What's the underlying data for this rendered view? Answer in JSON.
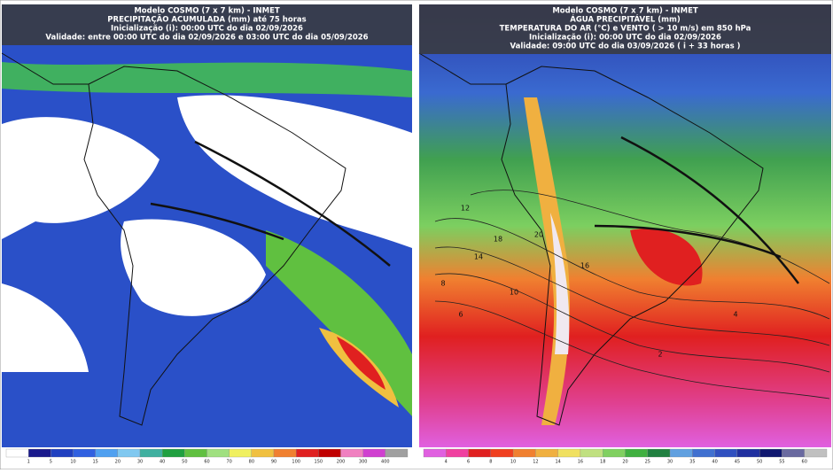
{
  "panels": [
    {
      "header": [
        "Modelo COSMO (7 x 7 km) - INMET",
        "PRECIPITAÇÃO ACUMULADA (mm) até 75 horas",
        "Inicialização (i): 00:00 UTC do dia 02/09/2026",
        "Validade: entre 00:00 UTC do dia 02/09/2026 e 03:00 UTC do dia 05/09/2026"
      ],
      "colorbar": {
        "colors": [
          "#ffffff",
          "#1a1a8c",
          "#2040c0",
          "#3060e0",
          "#4fa0f0",
          "#80c8f0",
          "#40b0a0",
          "#20a040",
          "#60c040",
          "#a0e080",
          "#f0f060",
          "#f0c040",
          "#f08030",
          "#e02020",
          "#c00000",
          "#f080c0",
          "#d040d0",
          "#a0a0a0"
        ],
        "labels": [
          "1",
          "5",
          "10",
          "15",
          "20",
          "30",
          "40",
          "50",
          "60",
          "70",
          "80",
          "90",
          "100",
          "150",
          "200",
          "300",
          "400"
        ]
      }
    },
    {
      "header": [
        "Modelo COSMO (7 x 7 km) - INMET",
        "ÁGUA PRECIPITÁVEL (mm)",
        "TEMPERATURA DO AR (°C) e VENTO ( > 10 m/s) em 850 hPa",
        "Inicialização (i): 00:00 UTC do dia 02/09/2026",
        "Validade: 09:00 UTC do dia 03/09/2026 ( i + 33 horas )"
      ],
      "colorbar": {
        "colors": [
          "#e060e0",
          "#f040a0",
          "#e02020",
          "#f04020",
          "#f08030",
          "#f0b040",
          "#f0e060",
          "#c0e080",
          "#80d060",
          "#40b040",
          "#208040",
          "#60a0e0",
          "#4070d0",
          "#3050c0",
          "#2030a0",
          "#101870",
          "#6a6aa0",
          "#c0c0c0"
        ],
        "labels": [
          "4",
          "6",
          "8",
          "10",
          "12",
          "14",
          "16",
          "18",
          "20",
          "25",
          "30",
          "35",
          "40",
          "45",
          "50",
          "55",
          "60"
        ]
      },
      "contour_labels": [
        "12",
        "10",
        "8",
        "6",
        "4",
        "2",
        "14",
        "16",
        "18",
        "20"
      ]
    }
  ]
}
